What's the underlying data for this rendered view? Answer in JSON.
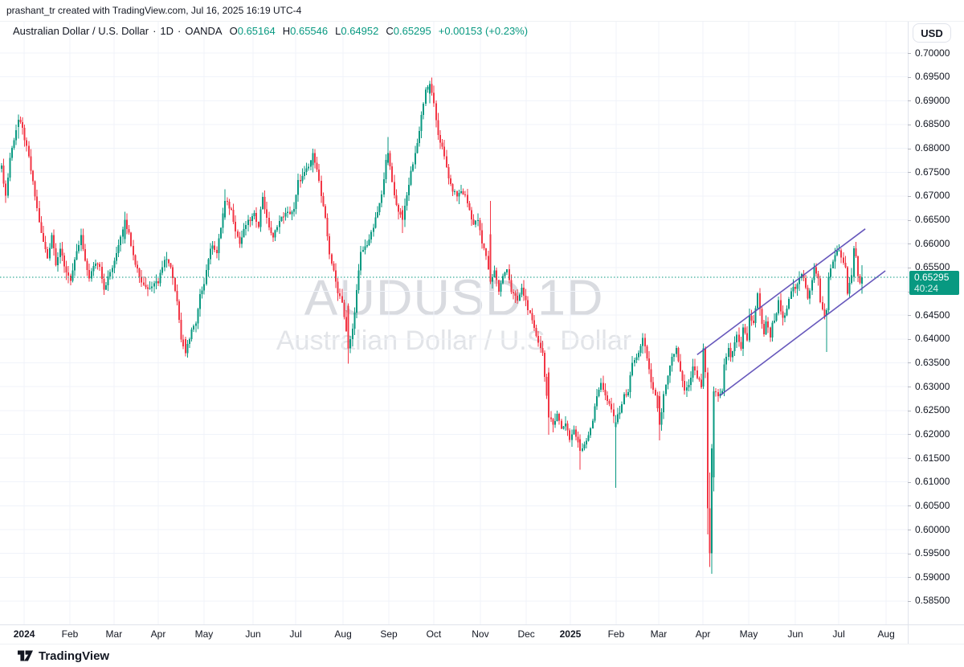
{
  "attribution": "prashant_tr created with TradingView.com, Jul 16, 2025 16:19 UTC-4",
  "header": {
    "title": "Australian Dollar / U.S. Dollar",
    "dot": "·",
    "interval": "1D",
    "exchange": "OANDA",
    "o_label": "O",
    "o": "0.65164",
    "h_label": "H",
    "h": "0.65546",
    "l_label": "L",
    "l": "0.64952",
    "c_label": "C",
    "c": "0.65295",
    "change": "+0.00153 (+0.23%)"
  },
  "currency_button": "USD",
  "watermark": {
    "line1": "AUDUSD 1D",
    "line2": "Australian Dollar / U.S. Dollar"
  },
  "price_line": {
    "price": 0.65295,
    "badge_value": "0.65295",
    "countdown": "40:24"
  },
  "logo_text": "TradingView",
  "colors": {
    "up": "#089981",
    "down": "#F23645",
    "grid": "#F0F3FA",
    "border": "#E0E3EB",
    "text": "#131722",
    "channel": "#5746B5",
    "badge": "#089981",
    "price_line": "#089981"
  },
  "price_scale_labels": [
    "0.70000",
    "0.69500",
    "0.69000",
    "0.68500",
    "0.68000",
    "0.67500",
    "0.67000",
    "0.66500",
    "0.66000",
    "0.65500",
    "0.65000",
    "0.64500",
    "0.64000",
    "0.63500",
    "0.63000",
    "0.62500",
    "0.62000",
    "0.61500",
    "0.61000",
    "0.60500",
    "0.60000",
    "0.59500",
    "0.59000",
    "0.58500"
  ],
  "chart_data": {
    "type": "candlestick",
    "symbol": "AUDUSD",
    "interval": "1D",
    "exchange": "OANDA",
    "title": "Australian Dollar / U.S. Dollar",
    "visible_price_range": [
      0.58,
      0.702
    ],
    "grid": {
      "h_step": 0.005,
      "h_min": 0.585,
      "h_max": 0.7
    },
    "x_ticks": [
      {
        "label": "2024",
        "t": 10.8,
        "bold": true
      },
      {
        "label": "Feb",
        "t": 32.7
      },
      {
        "label": "Mar",
        "t": 53.8
      },
      {
        "label": "Apr",
        "t": 75
      },
      {
        "label": "May",
        "t": 96.9
      },
      {
        "label": "Jun",
        "t": 120.4
      },
      {
        "label": "Jul",
        "t": 140.8
      },
      {
        "label": "Aug",
        "t": 163.5
      },
      {
        "label": "Sep",
        "t": 185.4
      },
      {
        "label": "Oct",
        "t": 206.9
      },
      {
        "label": "Nov",
        "t": 229.2
      },
      {
        "label": "Dec",
        "t": 251.2
      },
      {
        "label": "2025",
        "t": 272.3,
        "bold": true
      },
      {
        "label": "Feb",
        "t": 294.2
      },
      {
        "label": "Mar",
        "t": 314.6
      },
      {
        "label": "Apr",
        "t": 335.8
      },
      {
        "label": "May",
        "t": 357.7
      },
      {
        "label": "Jun",
        "t": 380
      },
      {
        "label": "Jul",
        "t": 400.8
      },
      {
        "label": "Aug",
        "t": 423.5
      }
    ],
    "total_candles": 413,
    "close_anchors": [
      [
        0,
        0.676
      ],
      [
        2,
        0.67
      ],
      [
        4,
        0.678
      ],
      [
        6,
        0.682
      ],
      [
        8,
        0.686
      ],
      [
        10,
        0.684
      ],
      [
        13,
        0.678
      ],
      [
        16,
        0.67
      ],
      [
        19,
        0.662
      ],
      [
        22,
        0.657
      ],
      [
        24,
        0.662
      ],
      [
        26,
        0.656
      ],
      [
        28,
        0.659
      ],
      [
        30,
        0.655
      ],
      [
        33,
        0.6525
      ],
      [
        36,
        0.658
      ],
      [
        38,
        0.6615
      ],
      [
        40,
        0.656
      ],
      [
        42,
        0.653
      ],
      [
        45,
        0.656
      ],
      [
        47,
        0.6555
      ],
      [
        49,
        0.6505
      ],
      [
        52,
        0.654
      ],
      [
        54,
        0.656
      ],
      [
        56,
        0.66
      ],
      [
        59,
        0.665
      ],
      [
        61,
        0.662
      ],
      [
        64,
        0.656
      ],
      [
        67,
        0.652
      ],
      [
        70,
        0.6505
      ],
      [
        73,
        0.652
      ],
      [
        75,
        0.652
      ],
      [
        78,
        0.657
      ],
      [
        81,
        0.6555
      ],
      [
        84,
        0.648
      ],
      [
        86,
        0.64
      ],
      [
        88,
        0.637
      ],
      [
        91,
        0.642
      ],
      [
        93,
        0.643
      ],
      [
        95,
        0.649
      ],
      [
        97,
        0.652
      ],
      [
        99,
        0.657
      ],
      [
        101,
        0.66
      ],
      [
        103,
        0.658
      ],
      [
        107,
        0.669
      ],
      [
        110,
        0.667
      ],
      [
        112,
        0.663
      ],
      [
        114,
        0.66
      ],
      [
        117,
        0.664
      ],
      [
        121,
        0.666
      ],
      [
        123,
        0.664
      ],
      [
        125,
        0.67
      ],
      [
        127,
        0.665
      ],
      [
        130,
        0.661
      ],
      [
        132,
        0.664
      ],
      [
        135,
        0.666
      ],
      [
        138,
        0.6665
      ],
      [
        140,
        0.667
      ],
      [
        142,
        0.673
      ],
      [
        144,
        0.674
      ],
      [
        147,
        0.676
      ],
      [
        149,
        0.679
      ],
      [
        151,
        0.676
      ],
      [
        153,
        0.67
      ],
      [
        155,
        0.665
      ],
      [
        157,
        0.658
      ],
      [
        159,
        0.654
      ],
      [
        161,
        0.65
      ],
      [
        163,
        0.648
      ],
      [
        166,
        0.638
      ],
      [
        168,
        0.642
      ],
      [
        170,
        0.65
      ],
      [
        172,
        0.658
      ],
      [
        175,
        0.66
      ],
      [
        177,
        0.662
      ],
      [
        179,
        0.665
      ],
      [
        182,
        0.67
      ],
      [
        184,
        0.678
      ],
      [
        185,
        0.679
      ],
      [
        187,
        0.673
      ],
      [
        189,
        0.668
      ],
      [
        192,
        0.665
      ],
      [
        194,
        0.67
      ],
      [
        196,
        0.675
      ],
      [
        199,
        0.681
      ],
      [
        201,
        0.687
      ],
      [
        203,
        0.692
      ],
      [
        205,
        0.6935
      ],
      [
        207,
        0.689
      ],
      [
        209,
        0.683
      ],
      [
        211,
        0.68
      ],
      [
        213,
        0.676
      ],
      [
        215,
        0.672
      ],
      [
        218,
        0.67
      ],
      [
        220,
        0.671
      ],
      [
        222,
        0.67
      ],
      [
        224,
        0.667
      ],
      [
        226,
        0.664
      ],
      [
        228,
        0.665
      ],
      [
        230,
        0.66
      ],
      [
        232,
        0.6575
      ],
      [
        234,
        0.652
      ],
      [
        236,
        0.6545
      ],
      [
        238,
        0.65
      ],
      [
        240,
        0.653
      ],
      [
        242,
        0.655
      ],
      [
        244,
        0.65
      ],
      [
        247,
        0.648
      ],
      [
        249,
        0.6505
      ],
      [
        251,
        0.648
      ],
      [
        253,
        0.645
      ],
      [
        255,
        0.642
      ],
      [
        257,
        0.6395
      ],
      [
        259,
        0.637
      ],
      [
        262,
        0.6235
      ],
      [
        264,
        0.622
      ],
      [
        266,
        0.6245
      ],
      [
        268,
        0.621
      ],
      [
        270,
        0.6225
      ],
      [
        272,
        0.619
      ],
      [
        274,
        0.621
      ],
      [
        277,
        0.6165
      ],
      [
        279,
        0.618
      ],
      [
        281,
        0.62
      ],
      [
        283,
        0.623
      ],
      [
        285,
        0.628
      ],
      [
        287,
        0.631
      ],
      [
        289,
        0.628
      ],
      [
        292,
        0.625
      ],
      [
        294,
        0.6225
      ],
      [
        296,
        0.625
      ],
      [
        298,
        0.628
      ],
      [
        300,
        0.629
      ],
      [
        302,
        0.635
      ],
      [
        304,
        0.636
      ],
      [
        307,
        0.64
      ],
      [
        309,
        0.636
      ],
      [
        311,
        0.631
      ],
      [
        313,
        0.628
      ],
      [
        315,
        0.622
      ],
      [
        317,
        0.628
      ],
      [
        319,
        0.632
      ],
      [
        321,
        0.636
      ],
      [
        323,
        0.638
      ],
      [
        325,
        0.633
      ],
      [
        327,
        0.629
      ],
      [
        329,
        0.63
      ],
      [
        331,
        0.634
      ],
      [
        333,
        0.632
      ],
      [
        335,
        0.63
      ],
      [
        336,
        0.638
      ],
      [
        337,
        0.633
      ],
      [
        338,
        0.6045
      ],
      [
        339,
        0.595
      ],
      [
        340,
        0.617
      ],
      [
        341,
        0.629
      ],
      [
        343,
        0.628
      ],
      [
        345,
        0.629
      ],
      [
        346,
        0.635
      ],
      [
        348,
        0.638
      ],
      [
        349,
        0.636
      ],
      [
        351,
        0.639
      ],
      [
        352,
        0.641
      ],
      [
        354,
        0.638
      ],
      [
        355,
        0.642
      ],
      [
        357,
        0.64
      ],
      [
        358,
        0.645
      ],
      [
        360,
        0.643
      ],
      [
        362,
        0.65
      ],
      [
        363,
        0.646
      ],
      [
        365,
        0.641
      ],
      [
        366,
        0.644
      ],
      [
        368,
        0.64
      ],
      [
        369,
        0.643
      ],
      [
        371,
        0.645
      ],
      [
        372,
        0.648
      ],
      [
        374,
        0.644
      ],
      [
        375,
        0.645
      ],
      [
        377,
        0.648
      ],
      [
        378,
        0.65
      ],
      [
        380,
        0.651
      ],
      [
        382,
        0.653
      ],
      [
        383,
        0.654
      ],
      [
        385,
        0.651
      ],
      [
        386,
        0.648
      ],
      [
        388,
        0.652
      ],
      [
        389,
        0.655
      ],
      [
        391,
        0.653
      ],
      [
        392,
        0.648
      ],
      [
        394,
        0.645
      ],
      [
        395,
        0.646
      ],
      [
        396,
        0.653
      ],
      [
        398,
        0.656
      ],
      [
        399,
        0.658
      ],
      [
        401,
        0.6585
      ],
      [
        402,
        0.657
      ],
      [
        404,
        0.655
      ],
      [
        405,
        0.65
      ],
      [
        407,
        0.653
      ],
      [
        408,
        0.659
      ],
      [
        409,
        0.6575
      ],
      [
        410,
        0.6535
      ],
      [
        411,
        0.6515
      ],
      [
        412,
        0.65295
      ]
    ],
    "ohlc_overrides": {
      "8": [
        0.6845,
        0.6871,
        0.682,
        0.686
      ],
      "59": [
        0.661,
        0.6667,
        0.66,
        0.665
      ],
      "88": [
        0.64,
        0.6405,
        0.6363,
        0.637
      ],
      "107": [
        0.6655,
        0.6714,
        0.665,
        0.669
      ],
      "149": [
        0.6765,
        0.6799,
        0.675,
        0.679
      ],
      "166": [
        0.647,
        0.6475,
        0.6348,
        0.638
      ],
      "185": [
        0.677,
        0.6824,
        0.6765,
        0.679
      ],
      "192": [
        0.667,
        0.668,
        0.6622,
        0.665
      ],
      "205": [
        0.6915,
        0.6942,
        0.6895,
        0.6935
      ],
      "234": [
        0.662,
        0.669,
        0.6515,
        0.652
      ],
      "262": [
        0.633,
        0.634,
        0.6199,
        0.6235
      ],
      "277": [
        0.619,
        0.62,
        0.6126,
        0.6165
      ],
      "294": [
        0.6215,
        0.624,
        0.6088,
        0.6225
      ],
      "315": [
        0.628,
        0.629,
        0.6187,
        0.622
      ],
      "336": [
        0.63,
        0.639,
        0.6295,
        0.638
      ],
      "338": [
        0.633,
        0.634,
        0.599,
        0.6045
      ],
      "339": [
        0.6045,
        0.612,
        0.5922,
        0.595
      ],
      "340": [
        0.595,
        0.618,
        0.5907,
        0.617
      ],
      "341": [
        0.611,
        0.63,
        0.608,
        0.629
      ],
      "395": [
        0.645,
        0.6465,
        0.6373,
        0.646
      ],
      "408": [
        0.653,
        0.6595,
        0.652,
        0.659
      ],
      "412": [
        0.65164,
        0.65546,
        0.64952,
        0.65295
      ]
    },
    "channel": {
      "color": "#5746B5",
      "lines": [
        {
          "t1": 333,
          "p1": 0.6367,
          "t2": 413.5,
          "p2": 0.6631
        },
        {
          "t1": 343.8,
          "p1": 0.6281,
          "t2": 423.1,
          "p2": 0.6543
        }
      ]
    }
  }
}
